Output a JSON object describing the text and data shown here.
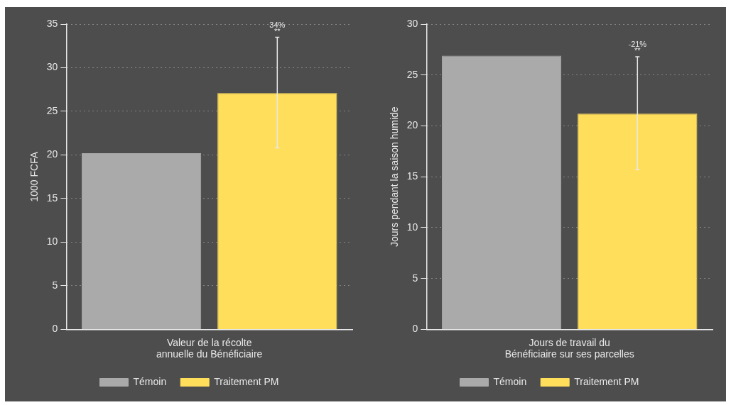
{
  "chart_data": [
    {
      "type": "bar",
      "categories": [
        "Valeur de la récolte\nannuelle du Bénéficiaire"
      ],
      "ylabel": "1000 FCFA",
      "ylim": [
        0,
        35
      ],
      "yticks": [
        0,
        5,
        10,
        15,
        20,
        25,
        30,
        35
      ],
      "grid": "y",
      "legend": "bottom",
      "annotations": [
        "34%",
        "**"
      ],
      "series": [
        {
          "name": "Témoin",
          "color": "#aaaaaa",
          "values": [
            20.2
          ]
        },
        {
          "name": "Traitement PM",
          "color": "#ffde5c",
          "values": [
            27.1
          ],
          "errors": [
            [
              20.8,
              33.5
            ]
          ]
        }
      ]
    },
    {
      "type": "bar",
      "categories": [
        "Jours de travail du\nBénéficiaire sur ses parcelles"
      ],
      "ylabel": "Jours pendant la saison humide",
      "ylim": [
        0,
        30
      ],
      "yticks": [
        0,
        5,
        10,
        15,
        20,
        25,
        30
      ],
      "grid": "y",
      "legend": "bottom",
      "annotations": [
        "-21%",
        "**"
      ],
      "series": [
        {
          "name": "Témoin",
          "color": "#aaaaaa",
          "values": [
            26.9
          ]
        },
        {
          "name": "Traitement PM",
          "color": "#ffde5c",
          "values": [
            21.2
          ],
          "errors": [
            [
              15.7,
              26.8
            ]
          ]
        }
      ]
    }
  ]
}
